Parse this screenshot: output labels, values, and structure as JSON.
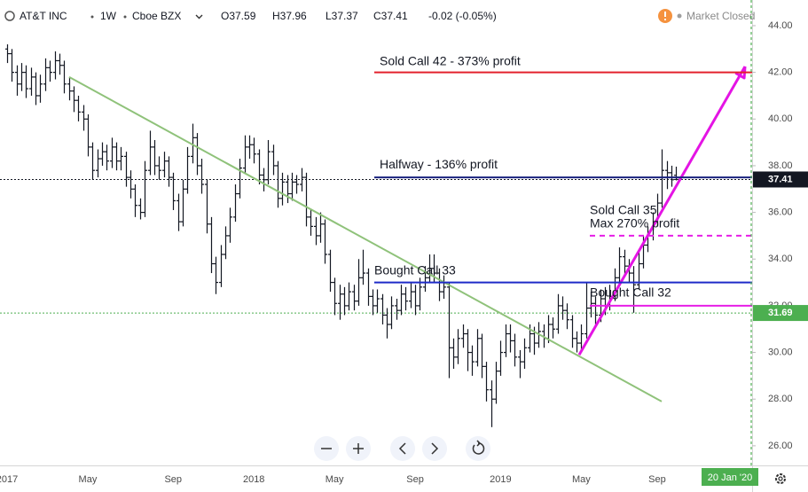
{
  "header": {
    "symbol": "AT&T INC",
    "interval": "1W",
    "exchange": "Cboe BZX",
    "ohlc": [
      "O37.59",
      "H37.96",
      "L37.37",
      "C37.41"
    ],
    "change": "-0.02 (-0.05%)",
    "status": "Market Closed"
  },
  "chart_data": {
    "type": "ohlc",
    "color": "#131722",
    "categories": [
      "2017",
      null,
      null,
      null,
      null,
      null,
      null,
      null,
      null,
      null,
      null,
      null,
      null,
      null,
      null,
      null,
      null,
      "May",
      null,
      null,
      null,
      null,
      null,
      null,
      null,
      null,
      null,
      null,
      null,
      null,
      null,
      null,
      null,
      null,
      null,
      "Sep",
      null,
      null,
      null,
      null,
      null,
      null,
      null,
      null,
      null,
      null,
      null,
      null,
      null,
      null,
      null,
      null,
      "2018",
      null,
      null,
      null,
      null,
      null,
      null,
      null,
      null,
      null,
      null,
      null,
      null,
      null,
      null,
      null,
      null,
      "May",
      null,
      null,
      null,
      null,
      null,
      null,
      null,
      null,
      null,
      null,
      null,
      null,
      null,
      null,
      null,
      null,
      "Sep",
      null,
      null,
      null,
      null,
      null,
      null,
      null,
      null,
      null,
      null,
      null,
      null,
      null,
      null,
      null,
      null,
      null,
      "2019",
      null,
      null,
      null,
      null,
      null,
      null,
      null,
      null,
      null,
      null,
      null,
      null,
      null,
      null,
      null,
      null,
      "May",
      null,
      null,
      null,
      null,
      null,
      null,
      null,
      null,
      null,
      null,
      null,
      null,
      null,
      null,
      null,
      "Sep",
      null,
      null,
      null,
      null
    ],
    "open": [
      43.0,
      42.8,
      42.0,
      41.5,
      42.0,
      41.3,
      41.8,
      41.0,
      41.5,
      42.2,
      42.0,
      42.5,
      42.3,
      41.5,
      41.2,
      40.8,
      40.3,
      40.0,
      38.8,
      37.8,
      38.3,
      38.6,
      38.2,
      38.8,
      38.2,
      38.4,
      37.5,
      37.0,
      36.3,
      36.0,
      37.8,
      38.8,
      38.0,
      37.8,
      38.2,
      37.5,
      36.5,
      35.6,
      37.0,
      38.4,
      39.2,
      38.0,
      37.2,
      35.5,
      33.8,
      33.0,
      34.2,
      35.0,
      35.8,
      36.8,
      37.9,
      38.8,
      38.9,
      38.5,
      37.6,
      37.4,
      38.6,
      38.0,
      36.6,
      37.3,
      36.8,
      37.3,
      37.2,
      37.5,
      35.8,
      35.4,
      35.0,
      35.5,
      34.2,
      33.0,
      32.1,
      32.5,
      32.0,
      32.6,
      32.2,
      33.2,
      33.4,
      32.4,
      32.0,
      32.3,
      31.6,
      31.2,
      32.0,
      31.8,
      32.5,
      32.2,
      32.6,
      32.0,
      32.8,
      33.2,
      33.6,
      33.4,
      32.6,
      32.8,
      30.2,
      29.8,
      30.6,
      30.8,
      30.0,
      29.6,
      30.6,
      29.4,
      28.4,
      28.0,
      29.2,
      30.0,
      30.8,
      30.5,
      29.8,
      29.6,
      30.2,
      30.8,
      30.4,
      30.9,
      30.6,
      31.2,
      31.0,
      32.0,
      31.8,
      31.4,
      30.6,
      30.4,
      30.8,
      31.9,
      32.1,
      31.6,
      32.3,
      32.0,
      32.4,
      33.2,
      34.1,
      33.7,
      33.4,
      32.9,
      33.8,
      34.6,
      35.0,
      35.6,
      36.4,
      37.8,
      37.7,
      37.59
    ],
    "high": [
      43.2,
      43.0,
      42.3,
      42.4,
      42.3,
      42.2,
      42.0,
      41.9,
      42.6,
      42.5,
      42.9,
      42.8,
      42.5,
      41.8,
      41.4,
      41.0,
      40.6,
      40.2,
      39.0,
      38.7,
      39.0,
      38.9,
      39.2,
      39.0,
      38.8,
      38.6,
      37.8,
      37.2,
      36.6,
      38.2,
      39.5,
      39.1,
      38.4,
      38.6,
      38.4,
      37.7,
      36.8,
      37.4,
      38.8,
      39.8,
      39.4,
      38.3,
      37.4,
      35.8,
      34.1,
      34.6,
      35.4,
      36.2,
      37.2,
      38.3,
      39.3,
      39.3,
      39.2,
      38.7,
      37.9,
      39.1,
      38.9,
      38.2,
      37.7,
      37.6,
      37.7,
      37.6,
      37.9,
      37.7,
      36.1,
      35.8,
      36.0,
      35.7,
      34.4,
      33.2,
      32.9,
      32.8,
      33.0,
      32.9,
      34.0,
      34.4,
      33.6,
      32.7,
      32.7,
      32.5,
      31.9,
      32.4,
      32.3,
      32.9,
      32.8,
      33.0,
      32.9,
      33.2,
      33.7,
      34.2,
      34.2,
      33.6,
      33.3,
      33.0,
      30.6,
      31.0,
      31.2,
      31.0,
      30.3,
      31.0,
      30.8,
      29.6,
      28.8,
      29.6,
      30.5,
      31.2,
      31.2,
      30.8,
      30.1,
      30.6,
      31.2,
      31.1,
      31.3,
      31.2,
      31.6,
      31.5,
      32.5,
      32.4,
      32.1,
      31.6,
      30.9,
      31.2,
      33.0,
      32.6,
      32.4,
      32.7,
      32.8,
      32.9,
      33.6,
      34.5,
      34.4,
      34.0,
      33.7,
      34.3,
      35.0,
      35.4,
      36.0,
      36.8,
      38.7,
      38.2,
      38.0,
      37.96
    ],
    "low": [
      42.4,
      41.6,
      41.0,
      41.2,
      40.9,
      41.0,
      40.6,
      40.7,
      41.2,
      41.6,
      41.7,
      41.9,
      41.1,
      40.8,
      40.3,
      39.9,
      39.5,
      38.4,
      37.4,
      37.5,
      38.0,
      37.8,
      37.9,
      37.8,
      37.8,
      37.1,
      36.6,
      35.8,
      35.7,
      35.8,
      37.6,
      37.6,
      37.4,
      37.5,
      37.1,
      36.1,
      35.2,
      35.4,
      36.8,
      38.1,
      37.6,
      36.8,
      35.1,
      33.4,
      32.5,
      32.8,
      34.0,
      34.7,
      35.6,
      36.6,
      37.7,
      38.3,
      38.1,
      37.2,
      36.9,
      37.2,
      37.6,
      36.2,
      36.3,
      36.4,
      36.5,
      36.8,
      36.9,
      35.4,
      35.0,
      34.6,
      34.7,
      33.8,
      32.6,
      31.6,
      31.4,
      31.6,
      31.8,
      31.8,
      32.0,
      32.9,
      32.0,
      31.6,
      31.7,
      31.2,
      30.6,
      31.0,
      31.4,
      31.6,
      31.8,
      31.9,
      31.6,
      31.8,
      32.6,
      33.0,
      33.0,
      32.2,
      32.3,
      28.9,
      29.3,
      29.5,
      30.2,
      29.2,
      29.0,
      29.4,
      28.9,
      27.9,
      26.8,
      27.8,
      29.0,
      29.8,
      30.0,
      29.4,
      28.9,
      29.3,
      30.0,
      29.9,
      30.2,
      30.2,
      30.4,
      30.6,
      30.8,
      31.4,
      31.0,
      30.2,
      30.0,
      30.1,
      30.6,
      31.5,
      31.2,
      31.3,
      31.6,
      31.8,
      32.2,
      33.0,
      33.3,
      33.0,
      31.7,
      32.7,
      33.6,
      34.3,
      34.8,
      35.4,
      36.2,
      37.0,
      37.1,
      37.37
    ],
    "close": [
      42.8,
      42.0,
      41.5,
      42.0,
      41.3,
      41.8,
      41.0,
      41.5,
      42.2,
      42.0,
      42.5,
      42.3,
      41.5,
      41.2,
      40.8,
      40.3,
      40.0,
      38.8,
      37.8,
      38.3,
      38.6,
      38.2,
      38.8,
      38.2,
      38.4,
      37.5,
      37.0,
      36.3,
      36.0,
      37.8,
      38.8,
      38.0,
      37.8,
      38.2,
      37.5,
      36.5,
      35.6,
      37.0,
      38.4,
      39.2,
      38.0,
      37.2,
      35.5,
      33.8,
      33.0,
      34.2,
      35.0,
      35.8,
      36.8,
      37.9,
      38.8,
      38.9,
      38.5,
      37.6,
      37.4,
      38.6,
      38.0,
      36.6,
      37.3,
      36.8,
      37.3,
      37.2,
      37.5,
      35.8,
      35.4,
      35.0,
      35.5,
      34.2,
      33.0,
      32.1,
      32.5,
      32.0,
      32.6,
      32.2,
      33.2,
      33.4,
      32.4,
      32.0,
      32.3,
      31.6,
      31.2,
      32.0,
      31.8,
      32.5,
      32.2,
      32.6,
      32.0,
      32.8,
      33.2,
      33.6,
      33.4,
      32.6,
      32.8,
      30.2,
      29.8,
      30.6,
      30.8,
      30.0,
      29.6,
      30.6,
      29.4,
      28.4,
      28.0,
      29.2,
      30.0,
      30.8,
      30.5,
      29.8,
      29.6,
      30.2,
      30.8,
      30.4,
      30.9,
      30.6,
      31.2,
      31.0,
      32.0,
      31.8,
      31.4,
      30.6,
      30.4,
      30.8,
      31.9,
      32.1,
      31.6,
      32.3,
      32.0,
      32.4,
      33.2,
      34.1,
      33.7,
      33.4,
      32.9,
      33.8,
      34.6,
      35.0,
      35.6,
      36.4,
      37.8,
      37.7,
      37.4,
      37.41
    ],
    "ylim": [
      25.16,
      45.1
    ],
    "yticks": [
      {
        "value": 26,
        "label": "26.00"
      },
      {
        "value": 28,
        "label": "28.00"
      },
      {
        "value": 30,
        "label": "30.00"
      },
      {
        "value": 32,
        "label": "32.00"
      },
      {
        "value": 34,
        "label": "34.00"
      },
      {
        "value": 36,
        "label": "36.00"
      },
      {
        "value": 38,
        "label": "38.00"
      },
      {
        "value": 40,
        "label": "40.00"
      },
      {
        "value": 42,
        "label": "42.00"
      },
      {
        "value": 44,
        "label": "44.00"
      }
    ],
    "price_lines": [
      {
        "value": 37.41,
        "color": "#131722"
      },
      {
        "value": 31.69,
        "color": "#4caf50"
      }
    ],
    "annotations": [
      {
        "text": [
          "Sold Call 42 - 373% profit"
        ],
        "value": 42,
        "color": "#e3202c",
        "dash": false
      },
      {
        "text": [
          "Halfway - 136% profit"
        ],
        "value": 37.5,
        "color": "#1a237e",
        "dash": false
      },
      {
        "text": [
          "Sold Call 35",
          "Max 270% profit"
        ],
        "value": 35,
        "color": "#e61ee6",
        "dash": true
      },
      {
        "text": [
          "Bought Call 33"
        ],
        "value": 33,
        "color": "#1e2bc8",
        "dash": false
      },
      {
        "text": [
          "Bought Call 32"
        ],
        "value": 32,
        "color": "#e61ee6",
        "dash": false
      }
    ],
    "trendlines": [
      {
        "color": "#8fc27a",
        "values": [
          41.8,
          27.9
        ],
        "arrow": false
      },
      {
        "color": "#e414e4",
        "values": [
          29.9,
          42.25
        ],
        "arrow": true
      }
    ],
    "date_marker": {
      "label": "20 Jan '20",
      "color": "#4caf50"
    }
  }
}
